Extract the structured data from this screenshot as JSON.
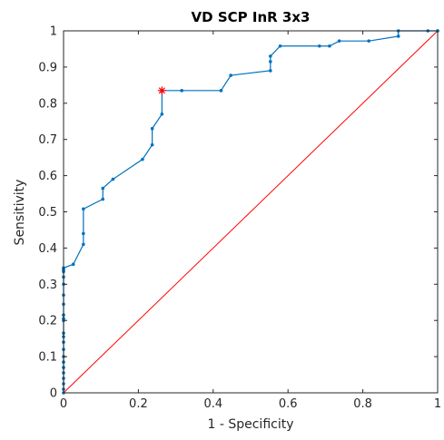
{
  "chart_data": {
    "type": "line",
    "title": "VD SCP InR 3x3",
    "xlabel": "1 - Specificity",
    "ylabel": "Sensitivity",
    "xlim": [
      0,
      1
    ],
    "ylim": [
      0,
      1
    ],
    "xticks": [
      "0",
      "0.2",
      "0.4",
      "0.6",
      "0.8",
      "1"
    ],
    "yticks": [
      "0",
      "0.1",
      "0.2",
      "0.3",
      "0.4",
      "0.5",
      "0.6",
      "0.7",
      "0.8",
      "0.9",
      "1"
    ],
    "grid": false,
    "colors": {
      "roc": "#0072bd",
      "reference": "#ff0000",
      "optimal": "#ff0000"
    },
    "series": [
      {
        "x": [
          0,
          0,
          0,
          0,
          0,
          0,
          0,
          0,
          0,
          0,
          0,
          0,
          0,
          0,
          0,
          0,
          0,
          0,
          0,
          0,
          0,
          0,
          0.026,
          0.053,
          0.053,
          0.053,
          0.105,
          0.105,
          0.132,
          0.211,
          0.237,
          0.237,
          0.263,
          0.263,
          0.316,
          0.421,
          0.447,
          0.553,
          0.553,
          0.553,
          0.579,
          0.684,
          0.711,
          0.737,
          0.816,
          0.895,
          0.895,
          0.974,
          1,
          1
        ],
        "y": [
          0,
          0.01,
          0.025,
          0.04,
          0.055,
          0.07,
          0.085,
          0.1,
          0.12,
          0.14,
          0.155,
          0.165,
          0.2,
          0.205,
          0.215,
          0.245,
          0.27,
          0.3,
          0.32,
          0.335,
          0.34,
          0.345,
          0.355,
          0.41,
          0.44,
          0.508,
          0.535,
          0.565,
          0.59,
          0.645,
          0.685,
          0.73,
          0.77,
          0.835,
          0.835,
          0.835,
          0.877,
          0.89,
          0.915,
          0.93,
          0.958,
          0.958,
          0.958,
          0.972,
          0.972,
          0.985,
          1,
          1,
          1,
          1
        ]
      },
      {
        "x": [
          0,
          1
        ],
        "y": [
          0,
          1
        ]
      }
    ],
    "optimal_point": {
      "x": 0.263,
      "y": 0.835
    }
  }
}
